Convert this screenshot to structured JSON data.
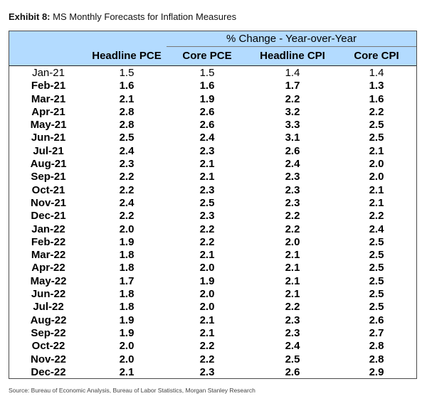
{
  "exhibit": {
    "label": "Exhibit 8:",
    "title": "MS Monthly Forecasts for Inflation Measures"
  },
  "table": {
    "span_header": "% Change - Year-over-Year",
    "columns": [
      "",
      "Headline PCE",
      "Core PCE",
      "Headline CPI",
      "Core CPI"
    ],
    "rows": [
      {
        "month": "Jan-21",
        "headline_pce": "1.5",
        "core_pce": "1.5",
        "headline_cpi": "1.4",
        "core_cpi": "1.4",
        "bold": false
      },
      {
        "month": "Feb-21",
        "headline_pce": "1.6",
        "core_pce": "1.6",
        "headline_cpi": "1.7",
        "core_cpi": "1.3",
        "bold": true
      },
      {
        "month": "Mar-21",
        "headline_pce": "2.1",
        "core_pce": "1.9",
        "headline_cpi": "2.2",
        "core_cpi": "1.6",
        "bold": true
      },
      {
        "month": "Apr-21",
        "headline_pce": "2.8",
        "core_pce": "2.6",
        "headline_cpi": "3.2",
        "core_cpi": "2.2",
        "bold": true
      },
      {
        "month": "May-21",
        "headline_pce": "2.8",
        "core_pce": "2.6",
        "headline_cpi": "3.3",
        "core_cpi": "2.5",
        "bold": true
      },
      {
        "month": "Jun-21",
        "headline_pce": "2.5",
        "core_pce": "2.4",
        "headline_cpi": "3.1",
        "core_cpi": "2.5",
        "bold": true
      },
      {
        "month": "Jul-21",
        "headline_pce": "2.4",
        "core_pce": "2.3",
        "headline_cpi": "2.6",
        "core_cpi": "2.1",
        "bold": true
      },
      {
        "month": "Aug-21",
        "headline_pce": "2.3",
        "core_pce": "2.1",
        "headline_cpi": "2.4",
        "core_cpi": "2.0",
        "bold": true
      },
      {
        "month": "Sep-21",
        "headline_pce": "2.2",
        "core_pce": "2.1",
        "headline_cpi": "2.3",
        "core_cpi": "2.0",
        "bold": true
      },
      {
        "month": "Oct-21",
        "headline_pce": "2.2",
        "core_pce": "2.3",
        "headline_cpi": "2.3",
        "core_cpi": "2.1",
        "bold": true
      },
      {
        "month": "Nov-21",
        "headline_pce": "2.4",
        "core_pce": "2.5",
        "headline_cpi": "2.3",
        "core_cpi": "2.1",
        "bold": true
      },
      {
        "month": "Dec-21",
        "headline_pce": "2.2",
        "core_pce": "2.3",
        "headline_cpi": "2.2",
        "core_cpi": "2.2",
        "bold": true
      },
      {
        "month": "Jan-22",
        "headline_pce": "2.0",
        "core_pce": "2.2",
        "headline_cpi": "2.2",
        "core_cpi": "2.4",
        "bold": true
      },
      {
        "month": "Feb-22",
        "headline_pce": "1.9",
        "core_pce": "2.2",
        "headline_cpi": "2.0",
        "core_cpi": "2.5",
        "bold": true
      },
      {
        "month": "Mar-22",
        "headline_pce": "1.8",
        "core_pce": "2.1",
        "headline_cpi": "2.1",
        "core_cpi": "2.5",
        "bold": true
      },
      {
        "month": "Apr-22",
        "headline_pce": "1.8",
        "core_pce": "2.0",
        "headline_cpi": "2.1",
        "core_cpi": "2.5",
        "bold": true
      },
      {
        "month": "May-22",
        "headline_pce": "1.7",
        "core_pce": "1.9",
        "headline_cpi": "2.1",
        "core_cpi": "2.5",
        "bold": true
      },
      {
        "month": "Jun-22",
        "headline_pce": "1.8",
        "core_pce": "2.0",
        "headline_cpi": "2.1",
        "core_cpi": "2.5",
        "bold": true
      },
      {
        "month": "Jul-22",
        "headline_pce": "1.8",
        "core_pce": "2.0",
        "headline_cpi": "2.2",
        "core_cpi": "2.5",
        "bold": true
      },
      {
        "month": "Aug-22",
        "headline_pce": "1.9",
        "core_pce": "2.1",
        "headline_cpi": "2.3",
        "core_cpi": "2.6",
        "bold": true
      },
      {
        "month": "Sep-22",
        "headline_pce": "1.9",
        "core_pce": "2.1",
        "headline_cpi": "2.3",
        "core_cpi": "2.7",
        "bold": true
      },
      {
        "month": "Oct-22",
        "headline_pce": "2.0",
        "core_pce": "2.2",
        "headline_cpi": "2.4",
        "core_cpi": "2.8",
        "bold": true
      },
      {
        "month": "Nov-22",
        "headline_pce": "2.0",
        "core_pce": "2.2",
        "headline_cpi": "2.5",
        "core_cpi": "2.8",
        "bold": true
      },
      {
        "month": "Dec-22",
        "headline_pce": "2.1",
        "core_pce": "2.3",
        "headline_cpi": "2.6",
        "core_cpi": "2.9",
        "bold": true
      }
    ]
  },
  "source": "Source: Bureau of Economic Analysis, Bureau of Labor Statistics, Morgan Stanley Research",
  "colors": {
    "header_background": "#b3dbff"
  }
}
